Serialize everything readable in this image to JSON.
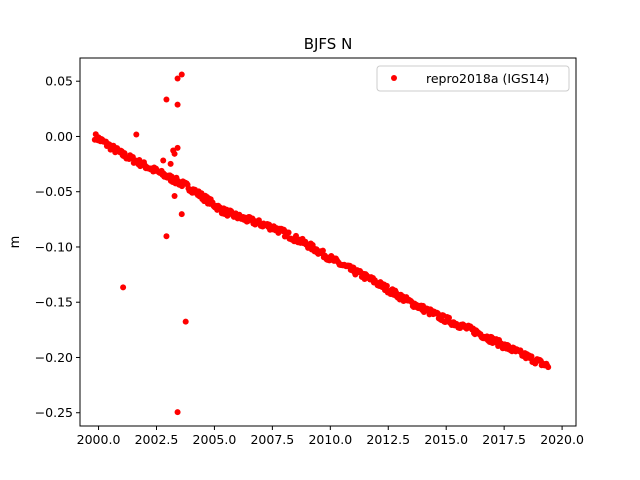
{
  "chart_data": {
    "type": "scatter",
    "title": "BJFS N",
    "xlabel": "",
    "ylabel": "m",
    "xlim": [
      1999.2,
      2020.6
    ],
    "ylim": [
      -0.262,
      0.071
    ],
    "xticks": [
      "2000.0",
      "2002.5",
      "2005.0",
      "2007.5",
      "2010.0",
      "2012.5",
      "2015.0",
      "2017.5",
      "2020.0"
    ],
    "xtick_values": [
      2000,
      2002.5,
      2005,
      2007.5,
      2010,
      2012.5,
      2015,
      2017.5,
      2020
    ],
    "yticks": [
      "0.05",
      "0.00",
      "−0.05",
      "−0.10",
      "−0.15",
      "−0.20",
      "−0.25"
    ],
    "ytick_values": [
      0.05,
      0,
      -0.05,
      -0.1,
      -0.15,
      -0.2,
      -0.25
    ],
    "grid": false,
    "legend": {
      "position": "top-right",
      "entries": [
        "repro2018a (IGS14)"
      ]
    },
    "series": [
      {
        "name": "repro2018a (IGS14)",
        "color": "#ff0000",
        "trend_x": [
          1999.84,
          2001.0,
          2002.45,
          2003.91,
          2005.36,
          2006.09,
          2007.54,
          2008.99,
          2010.44,
          2011.9,
          2013.35,
          2014.8,
          2016.25,
          2017.7,
          2019.4
        ],
        "trend_y": [
          0.0,
          -0.0158,
          -0.031,
          -0.046,
          -0.0673,
          -0.0733,
          -0.0824,
          -0.0976,
          -0.1157,
          -0.131,
          -0.149,
          -0.164,
          -0.1764,
          -0.1915,
          -0.208
        ],
        "outliers_x": [
          2003.41,
          2003.59,
          2002.93,
          2003.41,
          2001.63,
          2003.41,
          2003.22,
          2003.28,
          2002.79,
          2003.11,
          2003.28,
          2003.59,
          2002.93,
          2001.06,
          2003.76,
          2003.41
        ],
        "outliers_y": [
          0.0525,
          0.0561,
          0.0334,
          0.0288,
          0.0018,
          -0.0103,
          -0.0127,
          -0.0157,
          -0.0218,
          -0.0248,
          -0.0539,
          -0.0703,
          -0.0903,
          -0.1366,
          -0.1675,
          -0.2494
        ]
      }
    ]
  }
}
